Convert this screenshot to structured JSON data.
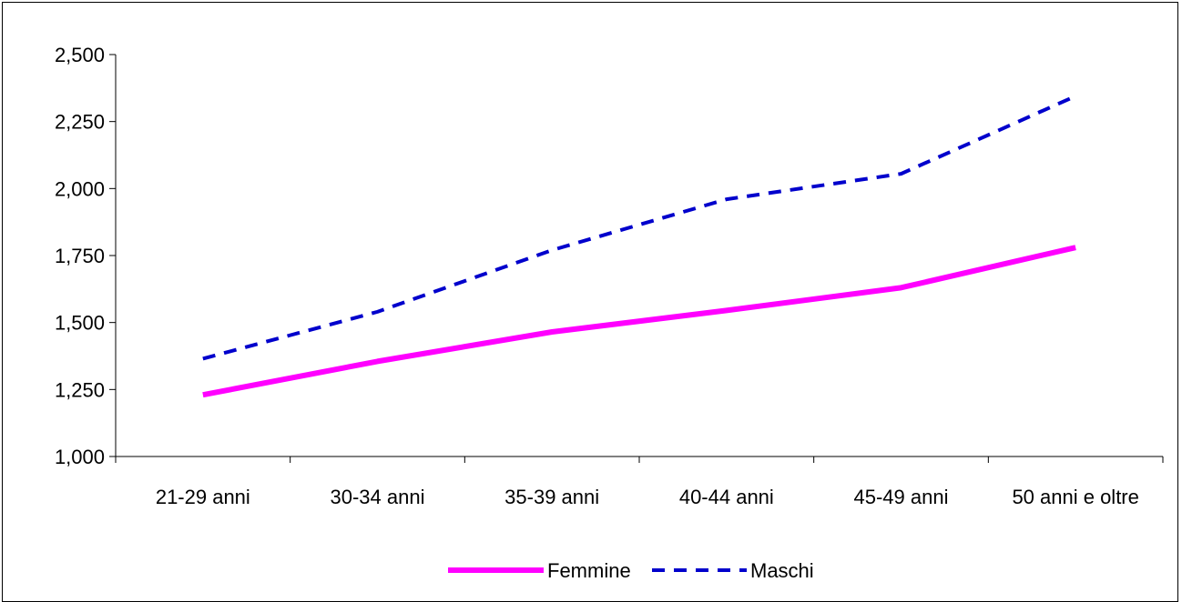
{
  "chart_data": {
    "type": "line",
    "categories": [
      "21-29 anni",
      "30-34 anni",
      "35-39 anni",
      "40-44 anni",
      "45-49 anni",
      "50 anni e oltre"
    ],
    "y_tick_labels": [
      "1,000",
      "1,250",
      "1,500",
      "1,750",
      "2,000",
      "2,250",
      "2,500"
    ],
    "y_ticks": [
      1000,
      1250,
      1500,
      1750,
      2000,
      2250,
      2500
    ],
    "ylim": [
      1000,
      2500
    ],
    "grid": false,
    "legend_position": "bottom",
    "series": [
      {
        "name": "Femmine",
        "values": [
          1230,
          1355,
          1465,
          1545,
          1630,
          1780
        ],
        "color": "#ff00ff",
        "style": "solid"
      },
      {
        "name": "Maschi",
        "values": [
          1365,
          1540,
          1770,
          1960,
          2055,
          2345
        ],
        "color": "#0000cc",
        "style": "dashed"
      }
    ]
  }
}
